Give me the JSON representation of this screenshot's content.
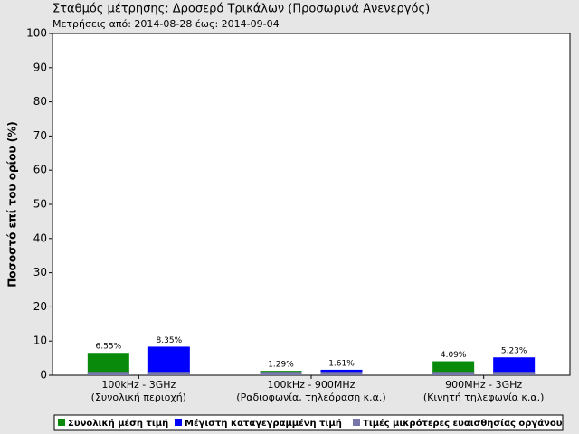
{
  "chart_data": {
    "type": "bar",
    "title": "Σταθμός μέτρησης: Δροσερό Τρικάλων (Προσωρινά Ανενεργός)",
    "subtitle": "Μετρήσεις από: 2014-08-28 έως: 2014-09-04",
    "y_label": "Ποσοστό επί του ορίου (%)",
    "categories": [
      [
        "100kHz - 3GHz",
        "(Συνολική περιοχή)"
      ],
      [
        "100kHz - 900MHz",
        "(Ραδιοφωνία, τηλεόραση κ.α.)"
      ],
      [
        "900MHz - 3GHz",
        "(Κινητή τηλεφωνία κ.α.)"
      ]
    ],
    "series": [
      {
        "name": "Συνολική μέση τιμή",
        "color": "#0a8a0a",
        "values": [
          6.55,
          1.29,
          4.09
        ],
        "value_labels": [
          "6.55%",
          "1.29%",
          "4.09%"
        ]
      },
      {
        "name": "Μέγιστη καταγεγραμμένη τιμή",
        "color": "#0000ff",
        "values": [
          8.35,
          1.61,
          5.23
        ],
        "value_labels": [
          "8.35%",
          "1.61%",
          "5.23%"
        ]
      },
      {
        "name": "Τιμές μικρότερες ευαισθησίας οργάνου",
        "color": "#7777aa",
        "values": [
          1,
          1,
          1
        ]
      }
    ],
    "ylim": [
      0,
      100
    ],
    "yticks": [
      0,
      10,
      20,
      30,
      40,
      50,
      60,
      70,
      80,
      90,
      100
    ],
    "grid": false
  }
}
